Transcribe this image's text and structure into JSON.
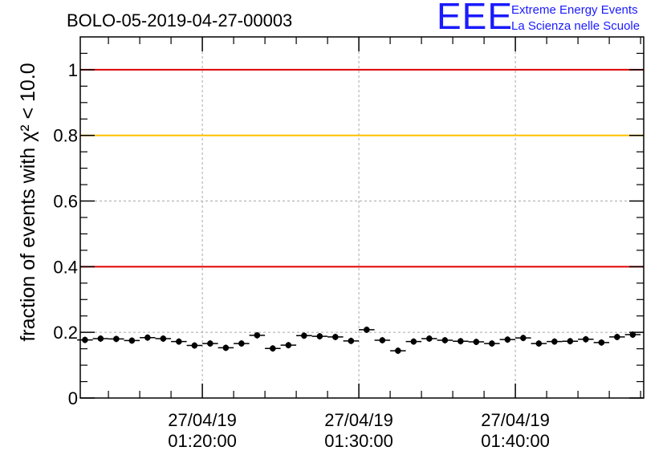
{
  "logo": {
    "letters": "EEE",
    "line1": "Extreme Energy Events",
    "line2": "La Scienza nelle Scuole",
    "color": "#1a1aff"
  },
  "chart_data": {
    "type": "scatter",
    "title": "BOLO-05-2019-04-27-00003",
    "ylabel": "fraction of events with χ² < 10.0",
    "xlabel": "",
    "x_tick_labels": [
      {
        "date": "27/04/19",
        "time": "01:20:00",
        "minute": 20
      },
      {
        "date": "27/04/19",
        "time": "01:30:00",
        "minute": 30
      },
      {
        "date": "27/04/19",
        "time": "01:40:00",
        "minute": 40
      }
    ],
    "xlim_minutes_after_01h": [
      12.2,
      48.2
    ],
    "ylim": [
      0,
      1.1
    ],
    "y_ticks": [
      0,
      0.2,
      0.4,
      0.6,
      0.8,
      1
    ],
    "y_tick_labels": [
      "0",
      "0.2",
      "0.4",
      "0.6",
      "0.8",
      "1"
    ],
    "grid": true,
    "reference_lines": [
      {
        "y": 1.0,
        "color": "#e00000"
      },
      {
        "y": 0.8,
        "color": "#ffc000"
      },
      {
        "y": 0.4,
        "color": "#e00000"
      }
    ],
    "marker_color": "#000000",
    "series": [
      {
        "x": [
          12.5,
          13.5,
          14.5,
          15.5,
          16.5,
          17.5,
          18.5,
          19.5,
          20.5,
          21.5,
          22.5,
          23.5,
          24.5,
          25.5,
          26.5,
          27.5,
          28.5,
          29.5,
          30.5,
          31.5,
          32.5,
          33.5,
          34.5,
          35.5,
          36.5,
          37.5,
          38.5,
          39.5,
          40.5,
          41.5,
          42.5,
          43.5,
          44.5,
          45.5,
          46.5,
          47.5
        ],
        "y": [
          0.177,
          0.181,
          0.18,
          0.175,
          0.184,
          0.181,
          0.172,
          0.16,
          0.166,
          0.153,
          0.166,
          0.191,
          0.151,
          0.161,
          0.19,
          0.188,
          0.186,
          0.174,
          0.208,
          0.176,
          0.144,
          0.172,
          0.181,
          0.176,
          0.173,
          0.171,
          0.166,
          0.178,
          0.183,
          0.166,
          0.172,
          0.173,
          0.179,
          0.169,
          0.186,
          0.193
        ]
      }
    ]
  }
}
